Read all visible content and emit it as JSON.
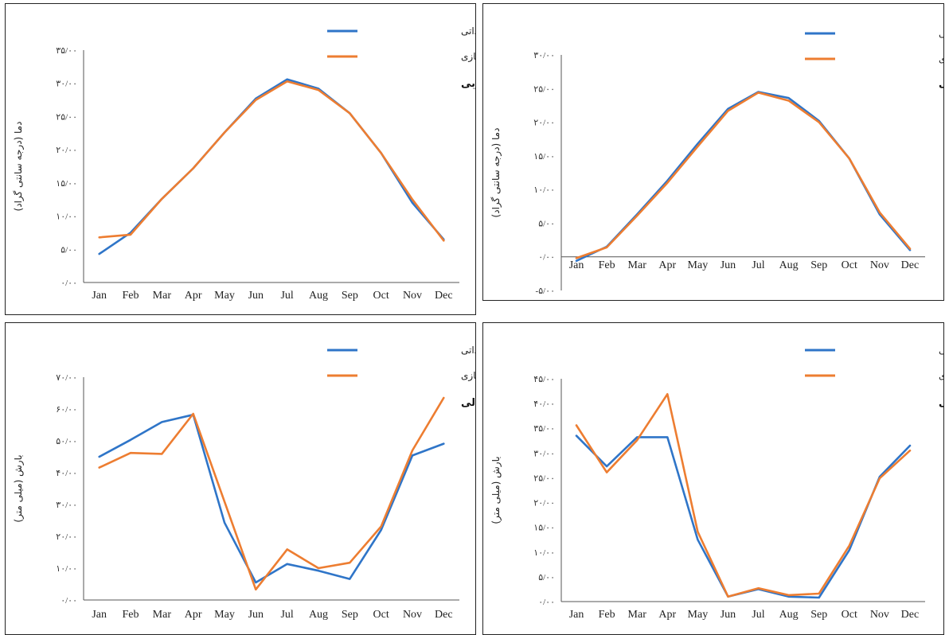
{
  "colors": {
    "observed": "#2f75c8",
    "simulated": "#ed7d31"
  },
  "chart_data": [
    {
      "type": "line",
      "id": "p0",
      "categories": [
        "Jan",
        "Feb",
        "Mar",
        "Apr",
        "May",
        "Jun",
        "Jul",
        "Aug",
        "Sep",
        "Oct",
        "Nov",
        "Dec"
      ],
      "y_ticks": [
        "۰/۰۰",
        "۵/۰۰",
        "۱۰/۰۰",
        "۱۵/۰۰",
        "۲۰/۰۰",
        "۲۵/۰۰",
        "۳۰/۰۰",
        "۳۵/۰۰"
      ],
      "ylim": [
        0,
        35
      ],
      "ylabel": "دما (درجه سانتی گراد)",
      "region_label": "حوضه جنوبی",
      "series": [
        {
          "name": "میانگین مشاهداتی",
          "color_key": "observed",
          "values": [
            4.3,
            7.5,
            12.6,
            17.2,
            22.6,
            27.7,
            30.6,
            29.2,
            25.5,
            19.5,
            12.0,
            6.5
          ]
        },
        {
          "name": "میانگین شبیه سازی",
          "color_key": "simulated",
          "values": [
            6.8,
            7.2,
            12.6,
            17.2,
            22.6,
            27.5,
            30.3,
            29.0,
            25.5,
            19.5,
            12.5,
            6.3
          ]
        }
      ]
    },
    {
      "type": "line",
      "id": "p1",
      "categories": [
        "Jan",
        "Feb",
        "Mar",
        "Apr",
        "May",
        "Jun",
        "Jul",
        "Aug",
        "Sep",
        "Oct",
        "Nov",
        "Dec"
      ],
      "y_ticks": [
        "-۵/۰۰",
        "۰/۰۰",
        "۵/۰۰",
        "۱۰/۰۰",
        "۱۵/۰۰",
        "۲۰/۰۰",
        "۲۵/۰۰",
        "۳۰/۰۰"
      ],
      "ylim": [
        -5,
        30
      ],
      "ylabel": "دما (درجه سانتی گراد)",
      "region_label": "حوضه شمالی",
      "series": [
        {
          "name": "میانگین مشاهداتی",
          "color_key": "observed",
          "values": [
            -0.6,
            1.5,
            6.3,
            11.3,
            16.8,
            22.0,
            24.5,
            23.6,
            20.2,
            14.6,
            6.3,
            1.0
          ]
        },
        {
          "name": "میانگین شبیه سازی",
          "color_key": "simulated",
          "values": [
            -0.2,
            1.4,
            6.1,
            11.0,
            16.4,
            21.7,
            24.4,
            23.2,
            20.0,
            14.6,
            6.6,
            1.2
          ]
        }
      ]
    },
    {
      "type": "line",
      "id": "p2",
      "categories": [
        "Jan",
        "Feb",
        "Mar",
        "Apr",
        "May",
        "Jun",
        "Jul",
        "Aug",
        "Sep",
        "Oct",
        "Nov",
        "Dec"
      ],
      "y_ticks": [
        "۰/۰۰",
        "۱۰/۰۰",
        "۲۰/۰۰",
        "۳۰/۰۰",
        "۴۰/۰۰",
        "۵۰/۰۰",
        "۶۰/۰۰",
        "۷۰/۰۰"
      ],
      "ylim": [
        0,
        70
      ],
      "ylabel": "بارش (میلی متر)",
      "region_label": "حوضه شمالی",
      "series": [
        {
          "name": "میانگین مشاهداتی",
          "color_key": "observed",
          "values": [
            45.0,
            50.3,
            55.9,
            58.2,
            24.3,
            5.5,
            11.3,
            9.2,
            6.6,
            22.0,
            45.4,
            49.1
          ]
        },
        {
          "name": "میانگین شبیه سازی",
          "color_key": "simulated",
          "values": [
            41.6,
            46.2,
            45.9,
            58.5,
            30.9,
            3.3,
            15.9,
            10.0,
            11.7,
            23.1,
            47.0,
            63.5
          ]
        }
      ]
    },
    {
      "type": "line",
      "id": "p3",
      "categories": [
        "Jan",
        "Feb",
        "Mar",
        "Apr",
        "May",
        "Jun",
        "Jul",
        "Aug",
        "Sep",
        "Oct",
        "Nov",
        "Dec"
      ],
      "y_ticks": [
        "۰/۰۰",
        "۵/۰۰",
        "۱۰/۰۰",
        "۱۵/۰۰",
        "۲۰/۰۰",
        "۲۵/۰۰",
        "۳۰/۰۰",
        "۳۵/۰۰",
        "۴۰/۰۰",
        "۴۵/۰۰"
      ],
      "ylim": [
        0,
        45
      ],
      "ylabel": "بارش (میلی متر)",
      "region_label": "حوضه جنوبی",
      "series": [
        {
          "name": "میانگین مشاهداتی",
          "color_key": "observed",
          "values": [
            33.5,
            27.3,
            33.2,
            33.2,
            12.5,
            1.0,
            2.5,
            1.0,
            0.8,
            10.4,
            25.2,
            31.5
          ]
        },
        {
          "name": "میانگین شبیه سازی",
          "color_key": "simulated",
          "values": [
            35.6,
            26.1,
            32.6,
            41.9,
            14.1,
            1.0,
            2.7,
            1.3,
            1.6,
            11.3,
            24.9,
            30.5
          ]
        }
      ]
    }
  ]
}
